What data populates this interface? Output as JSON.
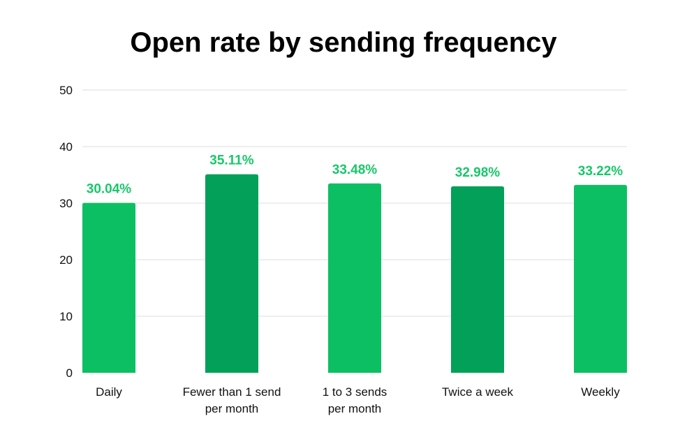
{
  "chart_data": {
    "type": "bar",
    "title": "Open rate by sending frequency",
    "xlabel": "",
    "ylabel": "",
    "categories": [
      [
        "Daily"
      ],
      [
        "Fewer than 1 send",
        "per month"
      ],
      [
        "1 to 3 sends",
        "per month"
      ],
      [
        "Twice a week"
      ],
      [
        "Weekly"
      ]
    ],
    "values": [
      30.04,
      35.11,
      33.48,
      32.98,
      33.22
    ],
    "data_labels": [
      "30.04%",
      "35.11%",
      "33.48%",
      "32.98%",
      "33.22%"
    ],
    "bar_colors": [
      "#0dbf63",
      "#02a059",
      "#0dbf63",
      "#02a059",
      "#0dbf63"
    ],
    "label_color": "#18c86a",
    "ylim": [
      0,
      50
    ],
    "yticks": [
      0,
      10,
      20,
      30,
      40,
      50
    ],
    "grid": true,
    "legend": "none"
  }
}
